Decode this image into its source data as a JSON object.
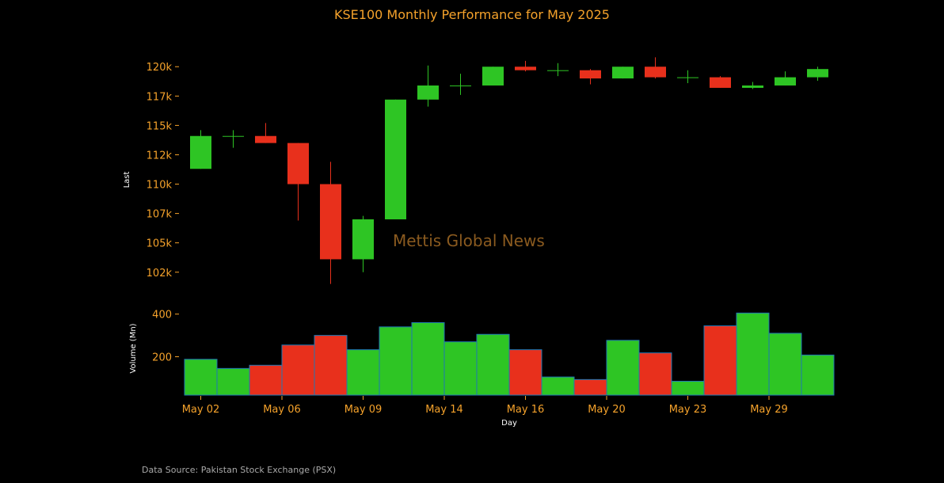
{
  "chart_data": {
    "type": "candlestick",
    "title": "KSE100 Monthly Performance for May 2025",
    "watermark": "Mettis Global News",
    "source": "Data Source: Pakistan Stock Exchange (PSX)",
    "xlabel": "Day",
    "price_ylabel": "Last",
    "volume_ylabel": "Volume (Mn)",
    "price_yticks": [
      102500,
      105000,
      107500,
      110000,
      112500,
      115000,
      117500,
      120000
    ],
    "price_ytick_labels": [
      "102k",
      "105k",
      "107k",
      "110k",
      "112k",
      "115k",
      "117k",
      "120k"
    ],
    "price_ylim": [
      101000,
      121500
    ],
    "volume_yticks": [
      200,
      400
    ],
    "volume_ylim": [
      20,
      410
    ],
    "xtick_labels": [
      "May 02",
      "May 06",
      "May 09",
      "May 14",
      "May 16",
      "May 20",
      "May 23",
      "May 29"
    ],
    "xtick_positions": [
      0.5,
      3,
      5.5,
      8,
      10.5,
      13,
      15.5,
      18
    ],
    "colors": {
      "up": "#2ec524",
      "down": "#e8301c",
      "text": "#f5a22b",
      "volume_edge": "#1f77b4"
    },
    "candles": [
      {
        "open": 111300,
        "high": 114600,
        "low": 111300,
        "close": 114100
      },
      {
        "open": 114100,
        "high": 114600,
        "low": 113100,
        "close": 114100
      },
      {
        "open": 114100,
        "high": 115200,
        "low": 113500,
        "close": 113500
      },
      {
        "open": 113500,
        "high": 113500,
        "low": 106900,
        "close": 110000
      },
      {
        "open": 110000,
        "high": 111900,
        "low": 101500,
        "close": 103600
      },
      {
        "open": 103600,
        "high": 107300,
        "low": 102500,
        "close": 107000
      },
      {
        "open": 107000,
        "high": 117200,
        "low": 107000,
        "close": 117200
      },
      {
        "open": 117200,
        "high": 120100,
        "low": 116600,
        "close": 118400
      },
      {
        "open": 118400,
        "high": 119400,
        "low": 117600,
        "close": 118400
      },
      {
        "open": 118400,
        "high": 120000,
        "low": 118400,
        "close": 120000
      },
      {
        "open": 120000,
        "high": 120500,
        "low": 119600,
        "close": 119700
      },
      {
        "open": 119700,
        "high": 120300,
        "low": 119200,
        "close": 119700
      },
      {
        "open": 119700,
        "high": 119800,
        "low": 118500,
        "close": 119000
      },
      {
        "open": 119000,
        "high": 120000,
        "low": 119000,
        "close": 120000
      },
      {
        "open": 120000,
        "high": 120800,
        "low": 119000,
        "close": 119100
      },
      {
        "open": 119100,
        "high": 119700,
        "low": 118600,
        "close": 119100
      },
      {
        "open": 119100,
        "high": 119200,
        "low": 118200,
        "close": 118200
      },
      {
        "open": 118200,
        "high": 118700,
        "low": 118100,
        "close": 118400
      },
      {
        "open": 118400,
        "high": 119600,
        "low": 118400,
        "close": 119100
      },
      {
        "open": 119100,
        "high": 120000,
        "low": 118800,
        "close": 119800
      }
    ],
    "volumes": [
      188,
      145,
      160,
      255,
      300,
      233,
      340,
      360,
      270,
      305,
      233,
      105,
      93,
      277,
      218,
      85,
      345,
      405,
      310,
      208
    ]
  }
}
